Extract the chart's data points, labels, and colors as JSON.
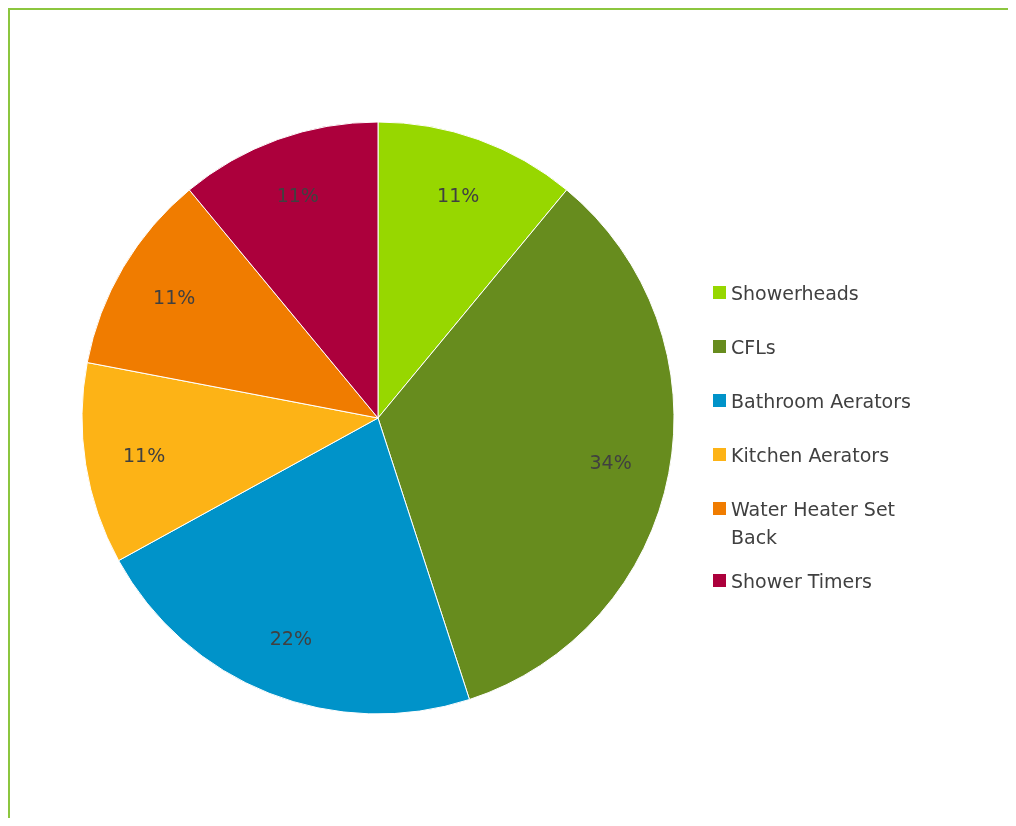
{
  "chart_data": {
    "type": "pie",
    "categories": [
      "Showerheads",
      "CFLs",
      "Bathroom Aerators",
      "Kitchen Aerators",
      "Water Heater Set Back",
      "Shower Timers"
    ],
    "values": [
      11,
      34,
      22,
      11,
      11,
      11
    ],
    "value_labels": [
      "11%",
      "34%",
      "22%",
      "11%",
      "11%",
      "11%"
    ],
    "colors": [
      "#97d700",
      "#678c1e",
      "#0093c9",
      "#fdb316",
      "#f07c00",
      "#ac003c"
    ],
    "legend": "right"
  }
}
